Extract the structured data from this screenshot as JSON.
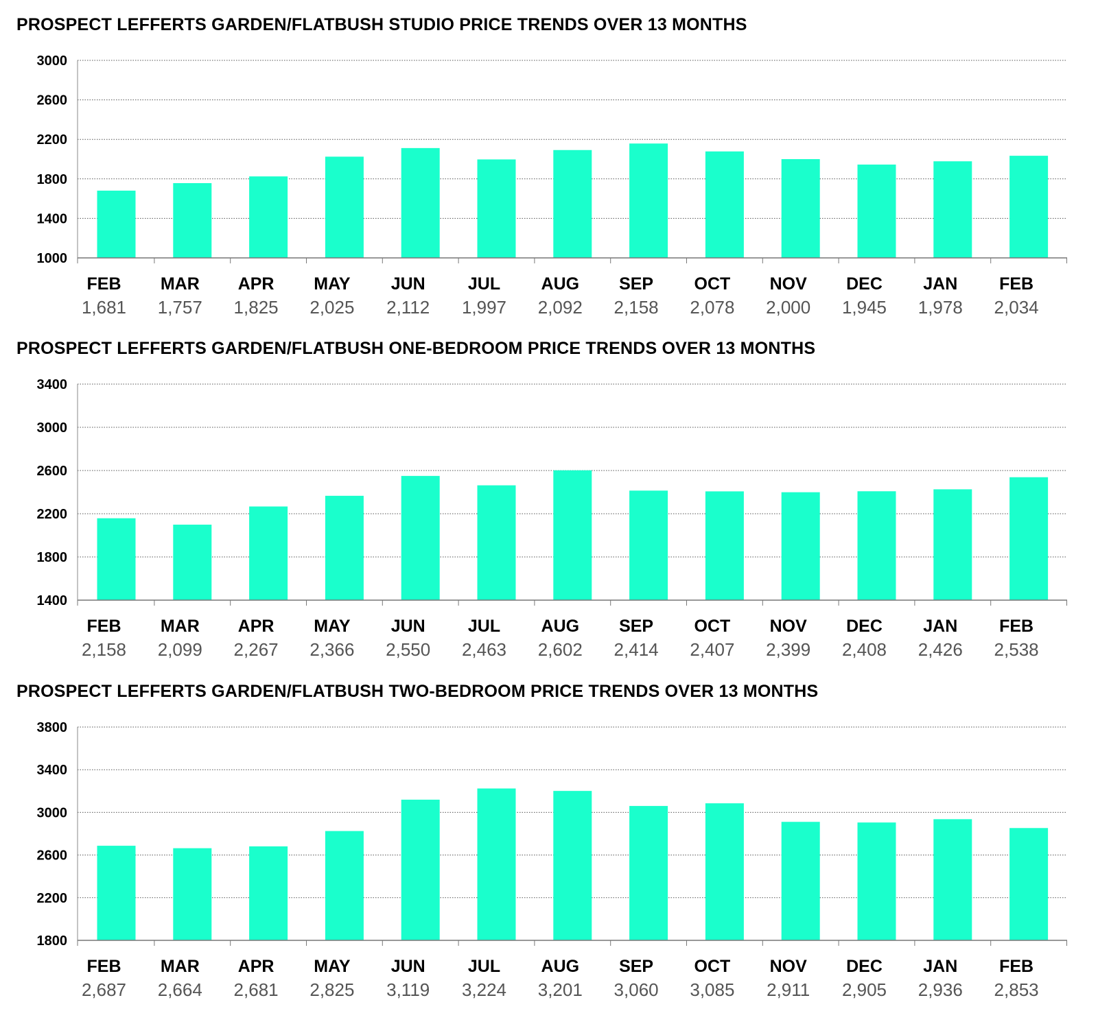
{
  "chart_data": [
    {
      "type": "bar",
      "title": "PROSPECT LEFFERTS GARDEN/FLATBUSH STUDIO PRICE TRENDS OVER 13 MONTHS",
      "categories": [
        "FEB",
        "MAR",
        "APR",
        "MAY",
        "JUN",
        "JUL",
        "AUG",
        "SEP",
        "OCT",
        "NOV",
        "DEC",
        "JAN",
        "FEB"
      ],
      "values": [
        1681,
        1757,
        1825,
        2025,
        2112,
        1997,
        2092,
        2158,
        2078,
        2000,
        1945,
        1978,
        2034
      ],
      "value_labels": [
        "1,681",
        "1,757",
        "1,825",
        "2,025",
        "2,112",
        "1,997",
        "2,092",
        "2,158",
        "2,078",
        "2,000",
        "1,945",
        "1,978",
        "2,034"
      ],
      "yticks": [
        1000,
        1400,
        1800,
        2200,
        2600,
        3000
      ],
      "ylim": [
        1000,
        3000
      ],
      "grid": true,
      "bar_color": "#1affcc"
    },
    {
      "type": "bar",
      "title": "PROSPECT LEFFERTS GARDEN/FLATBUSH ONE-BEDROOM PRICE TRENDS OVER 13 MONTHS",
      "categories": [
        "FEB",
        "MAR",
        "APR",
        "MAY",
        "JUN",
        "JUL",
        "AUG",
        "SEP",
        "OCT",
        "NOV",
        "DEC",
        "JAN",
        "FEB"
      ],
      "values": [
        2158,
        2099,
        2267,
        2366,
        2550,
        2463,
        2602,
        2414,
        2407,
        2399,
        2408,
        2426,
        2538
      ],
      "value_labels": [
        "2,158",
        "2,099",
        "2,267",
        "2,366",
        "2,550",
        "2,463",
        "2,602",
        "2,414",
        "2,407",
        "2,399",
        "2,408",
        "2,426",
        "2,538"
      ],
      "yticks": [
        1400,
        1800,
        2200,
        2600,
        3000,
        3400
      ],
      "ylim": [
        1400,
        3400
      ],
      "grid": true,
      "bar_color": "#1affcc"
    },
    {
      "type": "bar",
      "title": "PROSPECT LEFFERTS GARDEN/FLATBUSH TWO-BEDROOM PRICE TRENDS OVER 13 MONTHS",
      "categories": [
        "FEB",
        "MAR",
        "APR",
        "MAY",
        "JUN",
        "JUL",
        "AUG",
        "SEP",
        "OCT",
        "NOV",
        "DEC",
        "JAN",
        "FEB"
      ],
      "values": [
        2687,
        2664,
        2681,
        2825,
        3119,
        3224,
        3201,
        3060,
        3085,
        2911,
        2905,
        2936,
        2853
      ],
      "value_labels": [
        "2,687",
        "2,664",
        "2,681",
        "2,825",
        "3,119",
        "3,224",
        "3,201",
        "3,060",
        "3,085",
        "2,911",
        "2,905",
        "2,936",
        "2,853"
      ],
      "yticks": [
        1800,
        2200,
        2600,
        3000,
        3400,
        3800
      ],
      "ylim": [
        1800,
        3800
      ],
      "grid": true,
      "bar_color": "#1affcc"
    }
  ]
}
